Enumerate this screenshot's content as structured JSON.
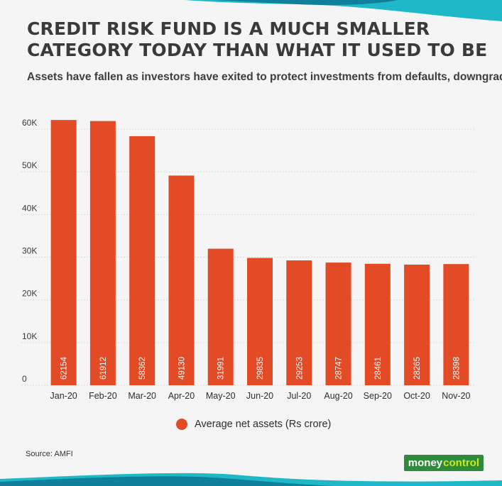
{
  "colors": {
    "bar": "#e24b26",
    "band_light": "#1fb8c9",
    "band_dark": "#0f7f9b",
    "grid": "#dcdcdc",
    "logo_bg": "#2e8b3a",
    "logo_accent": "#c9e81f"
  },
  "header": {
    "title_line1": "CREDIT RISK FUND IS A MUCH SMALLER",
    "title_line2": "CATEGORY TODAY THAN WHAT IT USED TO BE",
    "subtitle": "Assets have fallen as investors have exited to protect investments from defaults, downgrades"
  },
  "chart_data": {
    "type": "bar",
    "categories": [
      "Jan-20",
      "Feb-20",
      "Mar-20",
      "Apr-20",
      "May-20",
      "Jun-20",
      "Jul-20",
      "Aug-20",
      "Sep-20",
      "Oct-20",
      "Nov-20"
    ],
    "series": [
      {
        "name": "Average net assets (Rs crore)",
        "values": [
          62154,
          61912,
          58362,
          49130,
          31991,
          29835,
          29253,
          28747,
          28461,
          28265,
          28398
        ]
      }
    ],
    "title": "",
    "xlabel": "",
    "ylabel": "",
    "ylim": [
      0,
      65000
    ],
    "yticks": [
      0,
      10000,
      20000,
      30000,
      40000,
      50000,
      60000
    ],
    "ytick_labels": [
      "0",
      "10K",
      "20K",
      "30K",
      "40K",
      "50K",
      "60K"
    ],
    "grid": true,
    "legend_position": "bottom-center",
    "data_labels": "inside-bar-bottom-rotated"
  },
  "legend": {
    "label": "Average net assets (Rs crore)"
  },
  "footer": {
    "source": "Source: AMFI",
    "logo_part1": "money",
    "logo_part2": "control"
  }
}
